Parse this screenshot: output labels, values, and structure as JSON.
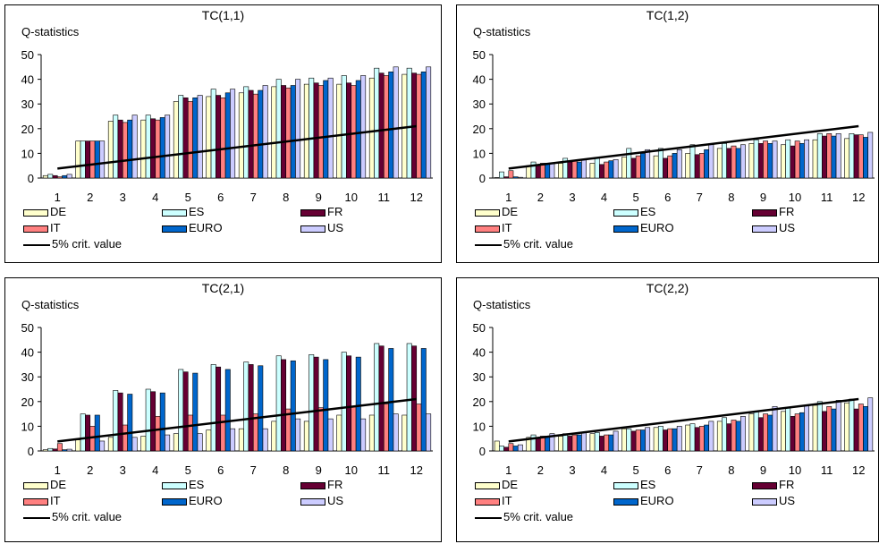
{
  "legend": {
    "series": [
      "DE",
      "ES",
      "FR",
      "IT",
      "EURO",
      "US"
    ],
    "crit_label": "5% crit. value"
  },
  "colors": {
    "DE": "#FFFFCC",
    "ES": "#CCFFFF",
    "FR": "#660033",
    "IT": "#FF8080",
    "EURO": "#0066CC",
    "US": "#CCCCFF",
    "crit": "#000000"
  },
  "chart_data": [
    {
      "type": "bar",
      "title": "TC(1,1)",
      "ylabel": "Q-statistics",
      "ylim": [
        0,
        50
      ],
      "yticks": [
        0,
        10,
        20,
        30,
        40,
        50
      ],
      "categories": [
        "1",
        "2",
        "3",
        "4",
        "5",
        "6",
        "7",
        "8",
        "9",
        "10",
        "11",
        "12"
      ],
      "series": [
        {
          "name": "DE",
          "values": [
            1,
            15,
            23,
            23.5,
            31,
            33,
            34.5,
            37,
            38,
            38,
            40.5,
            42
          ]
        },
        {
          "name": "ES",
          "values": [
            1.5,
            15,
            25.5,
            25.5,
            33.5,
            36,
            37,
            40,
            40.5,
            41.5,
            44.5,
            44.5
          ]
        },
        {
          "name": "FR",
          "values": [
            1,
            15,
            23.5,
            24,
            32.5,
            33.5,
            35.5,
            37.5,
            38.5,
            38.5,
            42.5,
            42.5
          ]
        },
        {
          "name": "IT",
          "values": [
            0.5,
            15,
            22.5,
            23.5,
            31,
            32.5,
            34,
            36.5,
            37.5,
            37.5,
            41.5,
            42
          ]
        },
        {
          "name": "EURO",
          "values": [
            1,
            15,
            23.5,
            24.5,
            32.5,
            34.5,
            35.5,
            37.5,
            39.5,
            39.5,
            43,
            43
          ]
        },
        {
          "name": "US",
          "values": [
            1.5,
            15,
            25.5,
            25.5,
            33.5,
            36,
            37.5,
            40,
            40.5,
            41.5,
            45,
            45
          ]
        }
      ],
      "crit_line": {
        "name": "5% crit. value",
        "from": 3.84,
        "to": 21.03
      }
    },
    {
      "type": "bar",
      "title": "TC(1,2)",
      "ylabel": "Q-statistics",
      "ylim": [
        0,
        50
      ],
      "yticks": [
        0,
        10,
        20,
        30,
        40,
        50
      ],
      "categories": [
        "1",
        "2",
        "3",
        "4",
        "5",
        "6",
        "7",
        "8",
        "9",
        "10",
        "11",
        "12"
      ],
      "series": [
        {
          "name": "DE",
          "values": [
            0.2,
            5,
            6,
            6,
            8.5,
            9,
            10,
            12,
            14,
            13.5,
            15.5,
            16
          ]
        },
        {
          "name": "ES",
          "values": [
            2.5,
            6.5,
            8,
            8,
            12,
            12,
            13.5,
            14,
            15.5,
            15.5,
            18,
            18
          ]
        },
        {
          "name": "FR",
          "values": [
            0.5,
            5.5,
            6.5,
            5.5,
            8,
            8,
            9.5,
            12,
            14,
            13,
            17,
            17.5
          ]
        },
        {
          "name": "IT",
          "values": [
            3,
            6,
            7,
            6.5,
            9,
            9,
            10,
            13,
            15,
            15,
            18,
            17.5
          ]
        },
        {
          "name": "EURO",
          "values": [
            0.5,
            6,
            6.5,
            7,
            10,
            10,
            11.5,
            12,
            14,
            14,
            17,
            16.5
          ]
        },
        {
          "name": "US",
          "values": [
            0.3,
            6,
            7.5,
            7.5,
            11.5,
            11.5,
            13.5,
            13.5,
            15,
            15.5,
            18,
            18.5
          ]
        }
      ],
      "crit_line": {
        "name": "5% crit. value",
        "from": 3.84,
        "to": 21.03
      }
    },
    {
      "type": "bar",
      "title": "TC(2,1)",
      "ylabel": "Q-statistics",
      "ylim": [
        0,
        50
      ],
      "yticks": [
        0,
        10,
        20,
        30,
        40,
        50
      ],
      "categories": [
        "1",
        "2",
        "3",
        "4",
        "5",
        "6",
        "7",
        "8",
        "9",
        "10",
        "11",
        "12"
      ],
      "series": [
        {
          "name": "DE",
          "values": [
            0.5,
            4.5,
            5.5,
            6,
            7,
            8.5,
            9,
            12,
            12,
            14.5,
            14.5,
            14.5
          ]
        },
        {
          "name": "ES",
          "values": [
            1,
            15,
            24.5,
            25,
            33,
            35,
            36,
            38.5,
            39,
            40,
            43.5,
            43.5
          ]
        },
        {
          "name": "FR",
          "values": [
            0.8,
            14.5,
            23.5,
            24,
            32,
            34,
            35,
            37,
            38,
            38.5,
            42.5,
            42.5
          ]
        },
        {
          "name": "IT",
          "values": [
            3,
            10,
            10.5,
            14,
            14.5,
            14.5,
            15,
            17,
            17.5,
            18,
            19,
            19
          ]
        },
        {
          "name": "EURO",
          "values": [
            0.5,
            14.5,
            23,
            23.5,
            31.5,
            33,
            34.5,
            36.5,
            37,
            38,
            41.5,
            41.5
          ]
        },
        {
          "name": "US",
          "values": [
            0.7,
            4,
            5.5,
            6.5,
            7,
            9,
            9,
            13,
            13,
            13,
            15,
            15
          ]
        }
      ],
      "crit_line": {
        "name": "5% crit. value",
        "from": 3.84,
        "to": 21.03
      }
    },
    {
      "type": "bar",
      "title": "TC(2,2)",
      "ylabel": "Q-statistics",
      "ylim": [
        0,
        50
      ],
      "yticks": [
        0,
        10,
        20,
        30,
        40,
        50
      ],
      "categories": [
        "1",
        "2",
        "3",
        "4",
        "5",
        "6",
        "7",
        "8",
        "9",
        "10",
        "11",
        "12"
      ],
      "series": [
        {
          "name": "DE",
          "values": [
            4,
            5.5,
            6,
            7,
            9,
            9.5,
            10.5,
            12,
            15,
            16,
            18.5,
            19.5
          ]
        },
        {
          "name": "ES",
          "values": [
            2,
            6.5,
            7,
            7.5,
            9,
            10,
            11,
            13.5,
            16,
            17.5,
            20,
            21
          ]
        },
        {
          "name": "FR",
          "values": [
            1.5,
            5.5,
            6,
            6,
            8,
            8.5,
            9.5,
            11,
            13.5,
            14,
            16,
            17
          ]
        },
        {
          "name": "IT",
          "values": [
            3,
            6,
            6.5,
            6.5,
            8.5,
            9,
            10,
            12.5,
            15,
            15,
            18,
            19
          ]
        },
        {
          "name": "EURO",
          "values": [
            2,
            6,
            6.5,
            6.5,
            8.5,
            9,
            10.5,
            12,
            14.5,
            15.5,
            17,
            18
          ]
        },
        {
          "name": "US",
          "values": [
            2.5,
            7,
            7.5,
            8,
            9.5,
            10,
            12,
            14,
            18,
            18.5,
            20.5,
            21.5
          ]
        }
      ],
      "crit_line": {
        "name": "5% crit. value",
        "from": 3.84,
        "to": 21.03
      }
    }
  ]
}
